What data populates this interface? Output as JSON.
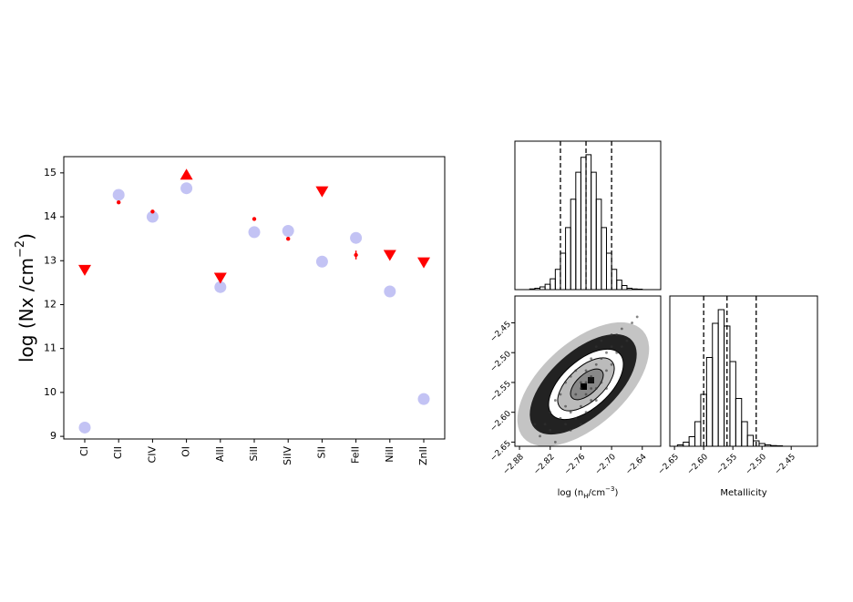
{
  "chart_data": [
    {
      "type": "scatter",
      "ylabel_parts": [
        "log (Nx /cm",
        "−2",
        ")"
      ],
      "categories": [
        "CI",
        "CII",
        "CIV",
        "OI",
        "AlII",
        "SiII",
        "SiIV",
        "SII",
        "FeII",
        "NiII",
        "ZnII"
      ],
      "series": [
        {
          "color": "#b8b8f2",
          "markers": [
            "o",
            "o",
            "o",
            "o",
            "o",
            "o",
            "o",
            "o",
            "o",
            "o",
            "o"
          ],
          "values": [
            9.2,
            14.5,
            14.0,
            14.65,
            12.4,
            13.65,
            13.68,
            12.98,
            13.52,
            12.3,
            9.85
          ]
        },
        {
          "color": "#ff0000",
          "markers": [
            "v",
            "o",
            "o",
            "^",
            "v",
            "o",
            "o",
            "v",
            "o",
            "v",
            "v"
          ],
          "values": [
            12.78,
            14.33,
            14.12,
            14.97,
            12.6,
            13.95,
            13.5,
            14.57,
            13.13,
            13.12,
            12.95
          ],
          "errors": [
            null,
            null,
            null,
            null,
            null,
            null,
            null,
            null,
            0.1,
            null,
            null
          ]
        }
      ],
      "ylim": [
        8.94,
        15.37
      ],
      "yticks": [
        9,
        10,
        11,
        12,
        13,
        14,
        15
      ]
    },
    {
      "type": "histogram",
      "color": "#000000",
      "bins": [
        -2.86,
        -2.85,
        -2.84,
        -2.83,
        -2.82,
        -2.81,
        -2.8,
        -2.79,
        -2.78,
        -2.77,
        -2.76,
        -2.75,
        -2.74,
        -2.73,
        -2.72,
        -2.71,
        -2.7,
        -2.69,
        -2.68,
        -2.67,
        -2.66,
        -2.65,
        -2.64
      ],
      "counts": [
        0.5,
        1,
        2,
        4,
        8,
        15,
        27,
        46,
        67,
        87,
        98,
        100,
        87,
        67,
        46,
        27,
        15,
        7,
        3,
        1,
        0.5,
        0.3
      ],
      "xlim": [
        -2.889,
        -2.604
      ],
      "ylim": [
        0,
        110
      ],
      "quantiles": [
        -2.8,
        -2.75,
        -2.7
      ]
    },
    {
      "type": "scatter",
      "color": "#333333",
      "xlabel_parts": [
        "log (n",
        "H",
        "/cm",
        "−3",
        ")"
      ],
      "x": [
        -2.8,
        -2.79,
        -2.78,
        -2.77,
        -2.76,
        -2.75,
        -2.74,
        -2.73,
        -2.72,
        -2.71,
        -2.7,
        -2.69,
        -2.82,
        -2.83,
        -2.81,
        -2.79,
        -2.77,
        -2.76,
        -2.74,
        -2.73,
        -2.72,
        -2.71,
        -2.7,
        -2.78,
        -2.76,
        -2.75,
        -2.74,
        -2.73,
        -2.72,
        -2.68,
        -2.67,
        -2.84,
        -2.8,
        -2.78,
        -2.77,
        -2.75,
        -2.73,
        -2.71,
        -2.69,
        -2.66,
        -2.82,
        -2.79,
        -2.75,
        -2.76,
        -2.74,
        -2.7,
        -2.85,
        -2.68,
        -2.81,
        -2.65
      ],
      "y": [
        -2.61,
        -2.59,
        -2.6,
        -2.57,
        -2.56,
        -2.55,
        -2.54,
        -2.52,
        -2.51,
        -2.5,
        -2.49,
        -2.47,
        -2.63,
        -2.62,
        -2.58,
        -2.55,
        -2.53,
        -2.59,
        -2.58,
        -2.56,
        -2.55,
        -2.53,
        -2.52,
        -2.63,
        -2.62,
        -2.6,
        -2.51,
        -2.49,
        -2.48,
        -2.46,
        -2.48,
        -2.64,
        -2.57,
        -2.54,
        -2.61,
        -2.53,
        -2.58,
        -2.56,
        -2.5,
        -2.45,
        -2.6,
        -2.62,
        -2.57,
        -2.55,
        -2.56,
        -2.47,
        -2.62,
        -2.49,
        -2.65,
        -2.44
      ],
      "xlim": [
        -2.889,
        -2.604
      ],
      "ylim": [
        -2.657,
        -2.405
      ],
      "xticks": [
        {
          "value": -2.88,
          "label": "−2.88"
        },
        {
          "value": -2.82,
          "label": "−2.82"
        },
        {
          "value": -2.76,
          "label": "−2.76"
        },
        {
          "value": -2.7,
          "label": "−2.70"
        },
        {
          "value": -2.64,
          "label": "−2.64"
        }
      ],
      "yticks": [
        {
          "value": -2.45,
          "label": "−2.45"
        },
        {
          "value": -2.5,
          "label": "−2.50"
        },
        {
          "value": -2.55,
          "label": "−2.55"
        },
        {
          "value": -2.6,
          "label": "−2.60"
        },
        {
          "value": -2.65,
          "label": "−2.65"
        }
      ]
    },
    {
      "type": "histogram",
      "color": "#000000",
      "xlabel": "Metallicity",
      "bins": [
        -2.645,
        -2.635,
        -2.625,
        -2.615,
        -2.605,
        -2.595,
        -2.585,
        -2.575,
        -2.565,
        -2.555,
        -2.545,
        -2.535,
        -2.525,
        -2.515,
        -2.505,
        -2.495,
        -2.485,
        -2.475,
        -2.465
      ],
      "counts": [
        1,
        3,
        7,
        18,
        38,
        65,
        90,
        100,
        88,
        62,
        35,
        18,
        8,
        4,
        2,
        1,
        0.5,
        0.3
      ],
      "xlim": [
        -2.658,
        -2.405
      ],
      "ylim": [
        0,
        110
      ],
      "quantiles": [
        -2.6,
        -2.56,
        -2.51
      ],
      "xticks": [
        {
          "value": -2.65,
          "label": "−2.65"
        },
        {
          "value": -2.6,
          "label": "−2.60"
        },
        {
          "value": -2.55,
          "label": "−2.55"
        },
        {
          "value": -2.5,
          "label": "−2.50"
        },
        {
          "value": -2.45,
          "label": "−2.45"
        }
      ]
    }
  ]
}
